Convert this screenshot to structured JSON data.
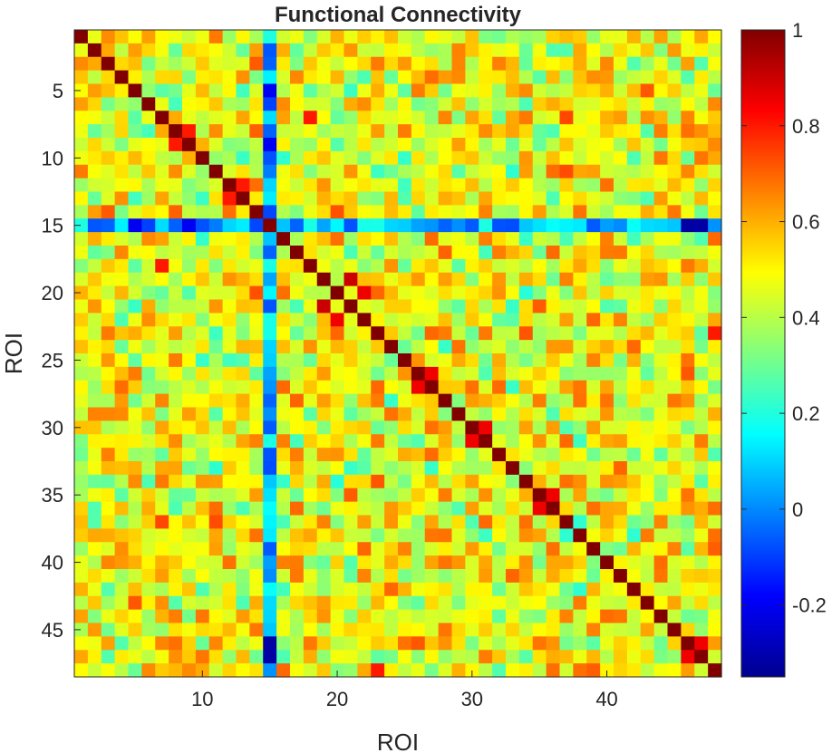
{
  "chart_data": {
    "type": "heatmap",
    "title": "Functional Connectivity",
    "xlabel": "ROI",
    "ylabel": "ROI",
    "n_rois": 48,
    "x_ticks": [
      10,
      20,
      30,
      40
    ],
    "y_ticks": [
      5,
      10,
      15,
      20,
      25,
      30,
      35,
      40,
      45
    ],
    "colormap": "jet",
    "clim": [
      -0.35,
      1
    ],
    "colorbar_ticks": [
      -0.2,
      0,
      0.2,
      0.4,
      0.6,
      0.8,
      1
    ],
    "colorbar_labels": [
      "-0.2",
      "0",
      "0.2",
      "0.4",
      "0.6",
      "0.8",
      "1"
    ],
    "diagonal_value": 1,
    "low_connectivity_roi": 15,
    "low_connectivity_mean": 0.05,
    "typical_off_diagonal_range": [
      0.2,
      0.75
    ],
    "notable_pairs": [
      {
        "roi_a": 19,
        "roi_b": 21,
        "value": 0.9
      },
      {
        "roi_a": 20,
        "roi_b": 22,
        "value": 0.85
      },
      {
        "roi_a": 26,
        "roi_b": 27,
        "value": 0.85
      },
      {
        "roi_a": 30,
        "roi_b": 31,
        "value": 0.85
      },
      {
        "roi_a": 35,
        "roi_b": 36,
        "value": 0.85
      },
      {
        "roi_a": 46,
        "roi_b": 47,
        "value": 0.85
      },
      {
        "roi_a": 7,
        "roi_b": 18,
        "value": 0.8
      },
      {
        "roi_a": 8,
        "roi_b": 9,
        "value": 0.8
      },
      {
        "roi_a": 12,
        "roi_b": 13,
        "value": 0.8
      },
      {
        "roi_a": 23,
        "roi_b": 48,
        "value": 0.8
      },
      {
        "roi_a": 15,
        "roi_b": 46,
        "value": -0.3
      },
      {
        "roi_a": 15,
        "roi_b": 47,
        "value": -0.3
      },
      {
        "roi_a": 15,
        "roi_b": 9,
        "value": -0.2
      },
      {
        "roi_a": 15,
        "roi_b": 5,
        "value": -0.2
      }
    ]
  }
}
